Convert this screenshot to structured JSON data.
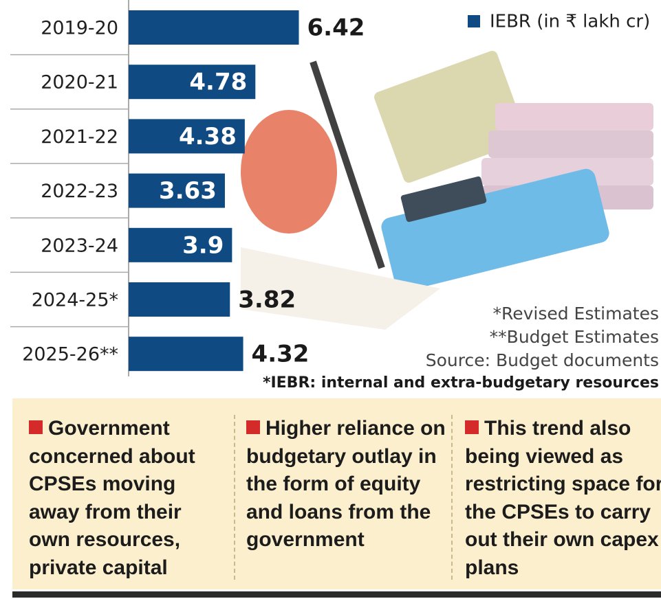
{
  "chart_data": {
    "type": "hbar",
    "categories": [
      "2019-20",
      "2020-21",
      "2021-22",
      "2022-23",
      "2023-24",
      "2024-25*",
      "2025-26**"
    ],
    "series": [
      {
        "name": "IEBR (in ₹ lakh cr)",
        "color": "#0f4b82",
        "values": [
          6.42,
          4.78,
          4.38,
          3.63,
          3.9,
          3.82,
          4.32
        ]
      }
    ],
    "label_inside": [
      false,
      true,
      true,
      true,
      true,
      false,
      false
    ],
    "xlim": [
      0,
      8.3
    ],
    "legend": "top-right"
  },
  "footnotes": [
    "*Revised Estimates",
    "**Budget Estimates",
    "Source: Budget documents",
    "*IEBR: internal and extra-budgetary resources"
  ],
  "points": [
    "Government concerned about CPSEs moving away from their own resources, private capital",
    "Higher reliance on budgetary outlay in the form of equity and loans from the government",
    "This trend also being viewed as restricting space for the CPSEs to carry out their own capex plans"
  ]
}
